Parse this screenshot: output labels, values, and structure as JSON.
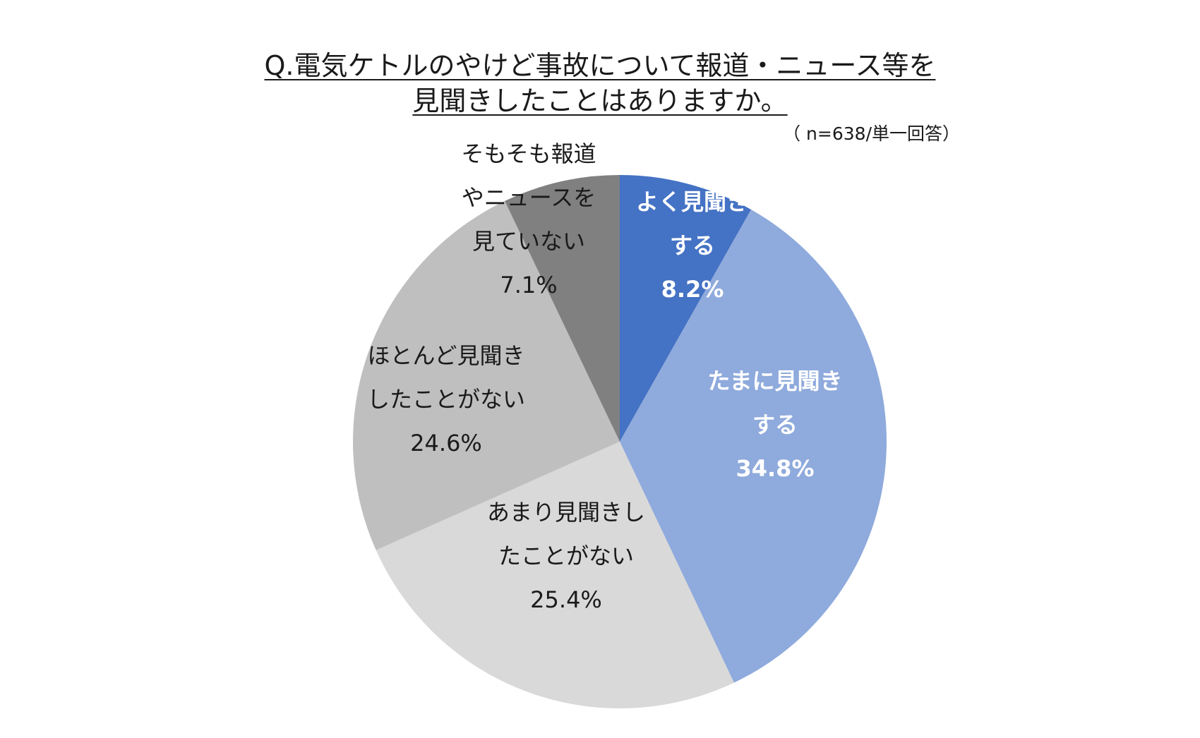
{
  "title_line1": "Q.電気ケトルのやけど事故について報道・ニュース等を",
  "title_line2": "見聞きしたことはありますか。",
  "subtitle": "（ n=638/単一回答）",
  "chart_data": {
    "type": "pie",
    "legend": "none",
    "slices": [
      {
        "label_lines": [
          "よく見聞き",
          "する"
        ],
        "value": 8.2,
        "value_text": "8.2%",
        "color": "#4472c4",
        "text_color": "#ffffff",
        "bold": true
      },
      {
        "label_lines": [
          "たまに見聞き",
          "する"
        ],
        "value": 34.8,
        "value_text": "34.8%",
        "color": "#8faadc",
        "text_color": "#ffffff",
        "bold": true
      },
      {
        "label_lines": [
          "あまり見聞きし",
          "たことがない"
        ],
        "value": 25.4,
        "value_text": "25.4%",
        "color": "#d9d9d9",
        "text_color": "#1a1a1a",
        "bold": false
      },
      {
        "label_lines": [
          "ほとんど見聞き",
          "したことがない"
        ],
        "value": 24.6,
        "value_text": "24.6%",
        "color": "#bfbfbf",
        "text_color": "#1a1a1a",
        "bold": false
      },
      {
        "label_lines": [
          "そもそも報道",
          "やニュースを",
          "見ていない"
        ],
        "value": 7.1,
        "value_text": "7.1%",
        "color": "#808080",
        "text_color": "#1a1a1a",
        "bold": false
      }
    ]
  }
}
